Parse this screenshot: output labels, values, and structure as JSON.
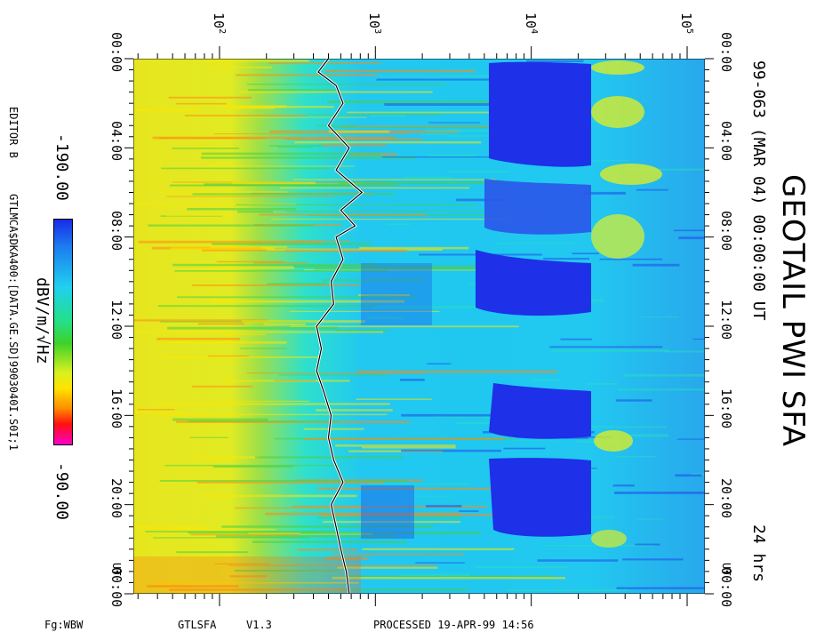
{
  "chart_data": {
    "type": "heatmap",
    "title": "GEOTAIL PWI SFA",
    "subtitle": "99-063 (MAR 04) 00:00:00 UT",
    "duration": "24 hrs",
    "xlabel": "",
    "ylabel": "",
    "freq_axis": {
      "scale": "log",
      "range": [
        28,
        130000
      ],
      "tick_labels": [
        "10",
        "10",
        "10",
        "10"
      ],
      "tick_exponents": [
        "2",
        "3",
        "4",
        "5"
      ],
      "tick_values": [
        100,
        1000,
        10000,
        100000
      ]
    },
    "time_axis": {
      "range_hours": [
        0,
        24
      ],
      "tick_labels": [
        "00:00",
        "04:00",
        "08:00",
        "12:00",
        "16:00",
        "20:00",
        "00:00"
      ],
      "tick_hours": [
        0,
        4,
        8,
        12,
        16,
        20,
        24
      ],
      "unit_label": "UT"
    },
    "colorbar": {
      "label": "dBV/m/√Hz",
      "min_label": "-190.00",
      "max_label": "-90.00",
      "colors": [
        "#1a2be8",
        "#1c7cf0",
        "#20d0ee",
        "#23e08a",
        "#3cd22a",
        "#d8f020",
        "#ffe400",
        "#ff8c00",
        "#ff1010",
        "#ff00c8"
      ]
    },
    "series": [
      {
        "kind": "trace",
        "color": "#000000",
        "x_freq": [
          500,
          430,
          560,
          620,
          500,
          680,
          560,
          820,
          600,
          740,
          560,
          620,
          520,
          540,
          420,
          450,
          420,
          470,
          520,
          500,
          540,
          620,
          520,
          560,
          600,
          650,
          680
        ],
        "y_hours": [
          0,
          0.6,
          1.2,
          2.0,
          3.0,
          4.0,
          5.0,
          6.0,
          6.8,
          7.5,
          8.0,
          9.0,
          10.0,
          11.0,
          12.0,
          13.0,
          14.0,
          15.0,
          16.0,
          17.0,
          18.0,
          19.0,
          20.0,
          21.0,
          22.0,
          23.0,
          24.0
        ]
      }
    ]
  },
  "footer": {
    "left": "Fg:WBW",
    "program": "GTLSFA",
    "version": "V1.3",
    "processed": "PROCESSED 19-APR-99  14:56"
  },
  "side": {
    "editor": "EDITOR B",
    "file": "GTLMCA$DKA400:[DATA.GE.SD]9903040I.S0I;1"
  }
}
